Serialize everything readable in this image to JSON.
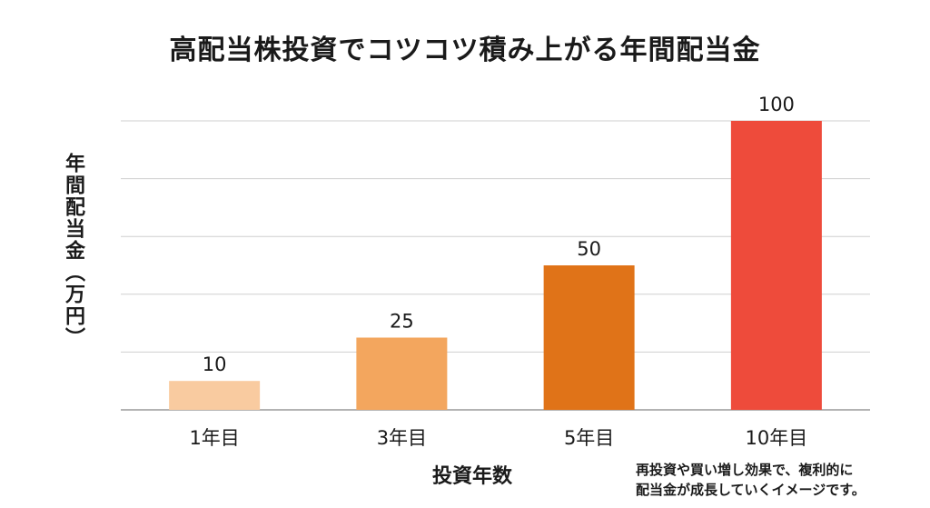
{
  "chart_data": {
    "type": "bar",
    "title": "高配当株投資でコツコツ積み上がる年間配当金",
    "xlabel": "投資年数",
    "ylabel": "年間配当金（万円）",
    "categories": [
      "1年目",
      "3年目",
      "5年目",
      "10年目"
    ],
    "values": [
      10,
      25,
      50,
      100
    ],
    "colors": [
      "#f9cba0",
      "#f3a65e",
      "#e07318",
      "#ee4b3b"
    ],
    "ylim": [
      0,
      100
    ],
    "grid": true,
    "legend": "none"
  },
  "note": {
    "line1": "再投資や買い増し効果で、複利的に",
    "line2": "配当金が成長していくイメージです。"
  }
}
